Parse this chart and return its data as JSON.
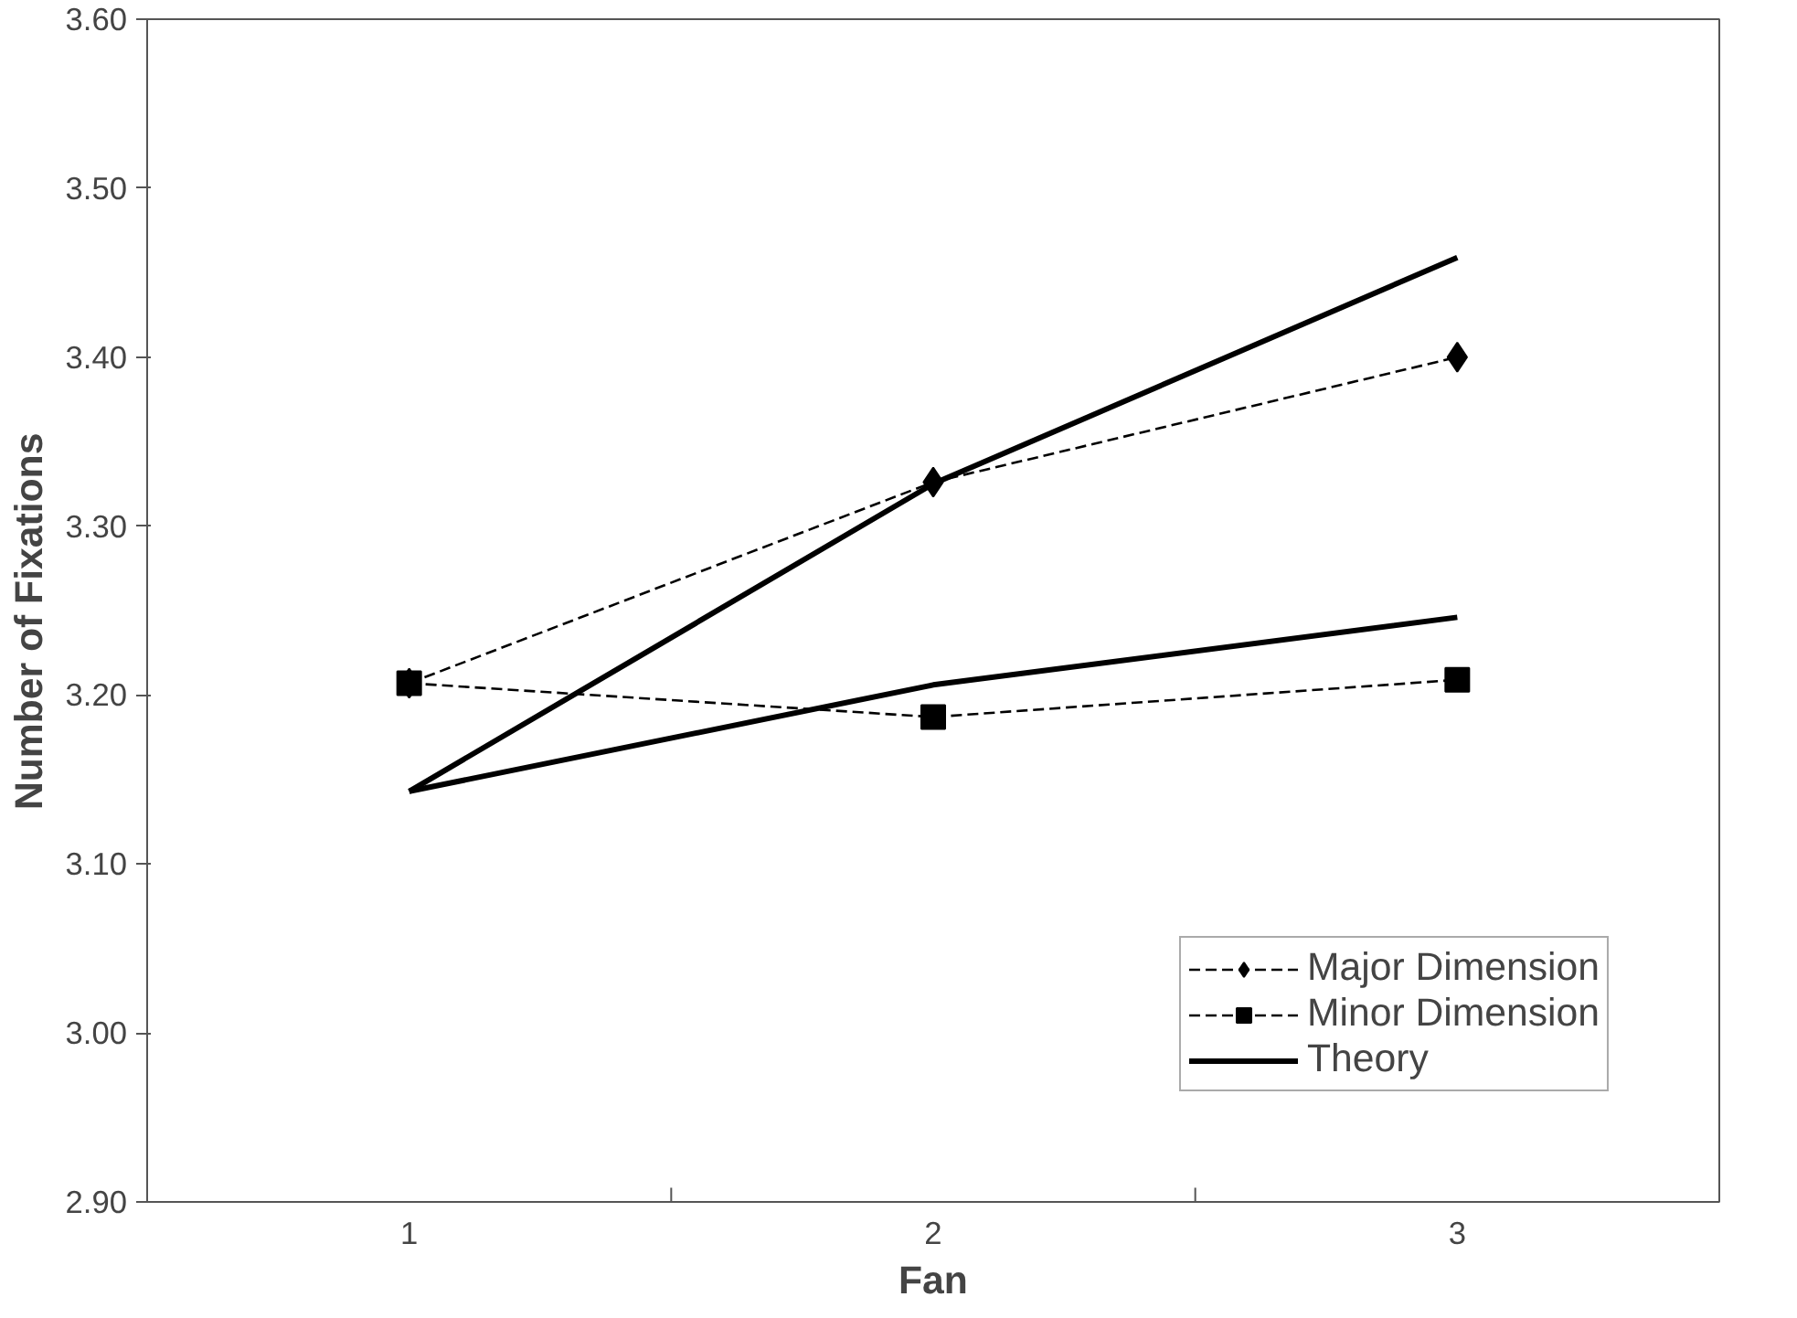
{
  "chart_data": {
    "type": "line",
    "xlabel": "Fan",
    "ylabel": "Number  of  Fixations",
    "categories": [
      "1",
      "2",
      "3"
    ],
    "series": [
      {
        "name": "Major Dimension",
        "color": "#000000",
        "values": [
          3.207,
          3.326,
          3.4
        ],
        "marker": "diamond",
        "line_style": "dashed"
      },
      {
        "name": "Minor Dimension",
        "color": "#000000",
        "values": [
          3.207,
          3.187,
          3.209
        ],
        "marker": "square",
        "line_style": "dashed"
      },
      {
        "name": "Theory",
        "color": "#000000",
        "values": [
          3.143,
          3.325,
          3.459
        ],
        "marker": "none",
        "line_style": "solid"
      },
      {
        "color": "#000000",
        "values": [
          3.143,
          3.206,
          3.246
        ],
        "marker": "none",
        "line_style": "solid"
      }
    ],
    "ylim": [
      2.9,
      3.6
    ],
    "yticks": [
      {
        "value": 2.9,
        "label": "2.90"
      },
      {
        "value": 3.0,
        "label": "3.00"
      },
      {
        "value": 3.1,
        "label": "3.10"
      },
      {
        "value": 3.2,
        "label": "3.20"
      },
      {
        "value": 3.3,
        "label": "3.30"
      },
      {
        "value": 3.4,
        "label": "3.40"
      },
      {
        "value": 3.5,
        "label": "3.50"
      },
      {
        "value": 3.6,
        "label": "3.60"
      }
    ],
    "grid": false,
    "legend": "bottom right"
  }
}
